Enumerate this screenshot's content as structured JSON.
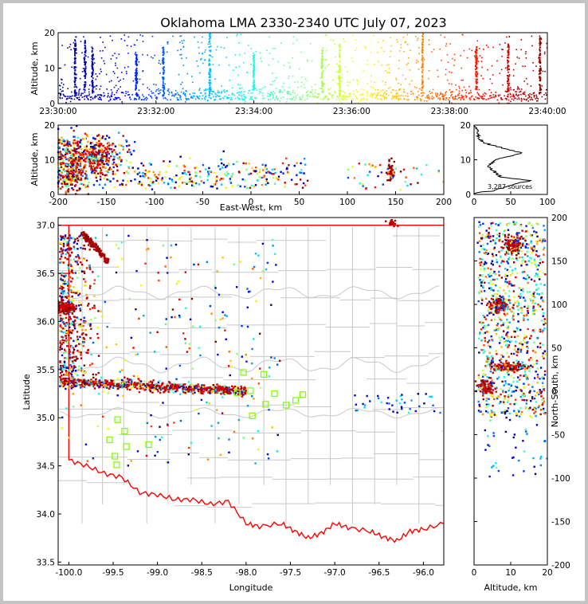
{
  "title": "Oklahoma LMA 2330-2340 UTC July 07, 2023",
  "colors": {
    "state_border": "#ff0000",
    "county_lines": "#c8c8c8",
    "station_marker": "#7cfc00",
    "colormap": "jet"
  },
  "chart_data": [
    {
      "name": "altitude-vs-time",
      "type": "scatter",
      "ylabel": "Altitude, km",
      "ylim": [
        0,
        20
      ],
      "yticks": [
        0,
        10,
        20
      ],
      "xticks": [
        "23:30:00",
        "23:32:00",
        "23:34:00",
        "23:36:00",
        "23:38:00",
        "23:40:00"
      ],
      "xlim_minutes": [
        0,
        10
      ],
      "color_by": "time",
      "columns": [
        {
          "t_min": 0.35,
          "alt": [
            2,
            19
          ]
        },
        {
          "t_min": 0.55,
          "alt": [
            3,
            18
          ]
        },
        {
          "t_min": 0.7,
          "alt": [
            3,
            16
          ]
        },
        {
          "t_min": 1.6,
          "alt": [
            2,
            14
          ]
        },
        {
          "t_min": 2.15,
          "alt": [
            2,
            16
          ]
        },
        {
          "t_min": 3.1,
          "alt": [
            2,
            20
          ]
        },
        {
          "t_min": 4.0,
          "alt": [
            4,
            14
          ]
        },
        {
          "t_min": 5.4,
          "alt": [
            3,
            16
          ]
        },
        {
          "t_min": 5.75,
          "alt": [
            2,
            17
          ]
        },
        {
          "t_min": 7.45,
          "alt": [
            2,
            20
          ]
        },
        {
          "t_min": 8.55,
          "alt": [
            4,
            16
          ]
        },
        {
          "t_min": 9.2,
          "alt": [
            2,
            17
          ]
        },
        {
          "t_min": 9.85,
          "alt": [
            3,
            19
          ]
        }
      ]
    },
    {
      "name": "altitude-vs-east-west",
      "type": "scatter",
      "xlabel": "East-West, km",
      "ylabel": "Altitude, km",
      "xlim": [
        -200,
        200
      ],
      "ylim": [
        0,
        20
      ],
      "xticks": [
        -200,
        -150,
        -100,
        -50,
        0,
        50,
        100,
        150,
        200
      ],
      "yticks": [
        0,
        10,
        20
      ],
      "clusters": [
        {
          "x": -158,
          "alt": 11,
          "spread_x": 18,
          "spread_alt": 6
        },
        {
          "x": -185,
          "alt": 8,
          "spread_x": 14,
          "spread_alt": 8
        },
        {
          "x": 145,
          "alt": 7,
          "spread_x": 4,
          "spread_alt": 3
        }
      ]
    },
    {
      "name": "altitude-histogram",
      "type": "line",
      "xlim": [
        0,
        100
      ],
      "ylim": [
        0,
        20
      ],
      "xticks": [
        0,
        50,
        100
      ],
      "yticks": [
        0,
        10,
        20
      ],
      "annotation": "3,287 sources",
      "profile": [
        {
          "alt": 0.5,
          "count": 2
        },
        {
          "alt": 1,
          "count": 25
        },
        {
          "alt": 2,
          "count": 40
        },
        {
          "alt": 3,
          "count": 55
        },
        {
          "alt": 4,
          "count": 78
        },
        {
          "alt": 5,
          "count": 38
        },
        {
          "alt": 6,
          "count": 30
        },
        {
          "alt": 7,
          "count": 26
        },
        {
          "alt": 8,
          "count": 20
        },
        {
          "alt": 9,
          "count": 24
        },
        {
          "alt": 10,
          "count": 30
        },
        {
          "alt": 11,
          "count": 48
        },
        {
          "alt": 12,
          "count": 66
        },
        {
          "alt": 13,
          "count": 45
        },
        {
          "alt": 14,
          "count": 28
        },
        {
          "alt": 15,
          "count": 12
        },
        {
          "alt": 16,
          "count": 8
        },
        {
          "alt": 17,
          "count": 6
        },
        {
          "alt": 18,
          "count": 4
        },
        {
          "alt": 19,
          "count": 3
        },
        {
          "alt": 20,
          "count": 1
        }
      ]
    },
    {
      "name": "plan-view",
      "type": "scatter",
      "xlabel": "Longitude",
      "ylabel": "Latitude",
      "xlim": [
        -100.12,
        -95.77
      ],
      "ylim": [
        33.47,
        37.08
      ],
      "xticks": [
        "-100.0",
        "-99.5",
        "-99.0",
        "-98.5",
        "-98.0",
        "-97.5",
        "-97.0",
        "-96.5",
        "-96.0"
      ],
      "yticks": [
        "33.5",
        "34.0",
        "34.5",
        "35.0",
        "35.5",
        "36.0",
        "36.5",
        "37.0"
      ],
      "lma_stations": [
        {
          "lon": -98.03,
          "lat": 35.47
        },
        {
          "lon": -98.1,
          "lat": 35.26
        },
        {
          "lon": -97.95,
          "lat": 35.28
        },
        {
          "lon": -97.8,
          "lat": 35.45
        },
        {
          "lon": -97.68,
          "lat": 35.25
        },
        {
          "lon": -97.78,
          "lat": 35.14
        },
        {
          "lon": -97.55,
          "lat": 35.13
        },
        {
          "lon": -97.44,
          "lat": 35.18
        },
        {
          "lon": -97.36,
          "lat": 35.24
        },
        {
          "lon": -97.93,
          "lat": 35.02
        },
        {
          "lon": -99.45,
          "lat": 34.98
        },
        {
          "lon": -99.37,
          "lat": 34.86
        },
        {
          "lon": -99.54,
          "lat": 34.77
        },
        {
          "lon": -99.35,
          "lat": 34.7
        },
        {
          "lon": -99.48,
          "lat": 34.6
        },
        {
          "lon": -99.46,
          "lat": 34.51
        },
        {
          "lon": -99.1,
          "lat": 34.72
        }
      ]
    },
    {
      "name": "north-south-vs-altitude",
      "type": "scatter",
      "xlabel": "Altitude, km",
      "ylabel": "North-South, km",
      "xlim": [
        0,
        20
      ],
      "ylim": [
        -200,
        200
      ],
      "xticks": [
        0,
        10,
        20
      ],
      "yticks": [
        -200,
        -150,
        -100,
        -50,
        0,
        50,
        100,
        150,
        200
      ]
    }
  ]
}
